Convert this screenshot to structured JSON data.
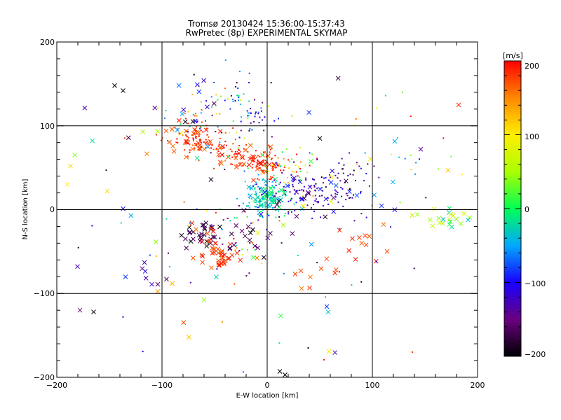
{
  "chart_data": {
    "type": "scatter",
    "title": "Tromsø 20130424 15:36:00-15:37:43",
    "subtitle": "RwPretec (8p) EXPERIMENTAL SKYMAP",
    "xlabel": "E-W location [km]",
    "ylabel": "N-S location [km]",
    "xlim": [
      -200,
      200
    ],
    "ylim": [
      -200,
      200
    ],
    "xticks": [
      "−200",
      "−100",
      "0",
      "100",
      "200"
    ],
    "yticks": [
      "200",
      "100",
      "0",
      "−100",
      "−200"
    ],
    "grid": true,
    "colorbar": {
      "label": "[m/s]",
      "range": [
        -200,
        200
      ],
      "ticks": [
        "200",
        "100",
        "0",
        "−100",
        "−200"
      ]
    },
    "clusters": [
      {
        "marker": "dot",
        "x": -70,
        "y": 85,
        "sx": 12,
        "sy": 12,
        "n": 90,
        "v": 185,
        "dv": 20
      },
      {
        "marker": "cross",
        "x": -70,
        "y": 85,
        "sx": 12,
        "sy": 10,
        "n": 25,
        "v": 180,
        "dv": 20
      },
      {
        "marker": "dot",
        "x": -30,
        "y": 65,
        "sx": 12,
        "sy": 10,
        "n": 40,
        "v": 185,
        "dv": 20
      },
      {
        "marker": "cross",
        "x": -30,
        "y": 62,
        "sx": 10,
        "sy": 8,
        "n": 15,
        "v": 180,
        "dv": 20
      },
      {
        "marker": "dot",
        "x": -7,
        "y": 55,
        "sx": 8,
        "sy": 10,
        "n": 50,
        "v": 185,
        "dv": 15
      },
      {
        "marker": "cross",
        "x": -7,
        "y": 55,
        "sx": 8,
        "sy": 10,
        "n": 18,
        "v": 185,
        "dv": 15
      },
      {
        "marker": "dot",
        "x": 0,
        "y": 15,
        "sx": 10,
        "sy": 10,
        "n": 140,
        "v": -30,
        "dv": 35
      },
      {
        "marker": "cross",
        "x": 0,
        "y": 15,
        "sx": 10,
        "sy": 8,
        "n": 30,
        "v": -25,
        "dv": 35
      },
      {
        "marker": "dot",
        "x": 10,
        "y": 50,
        "sx": 15,
        "sy": 10,
        "n": 50,
        "v": 110,
        "dv": 110
      },
      {
        "marker": "dot",
        "x": 40,
        "y": 20,
        "sx": 25,
        "sy": 15,
        "n": 100,
        "v": -120,
        "dv": 35
      },
      {
        "marker": "cross",
        "x": 40,
        "y": 20,
        "sx": 25,
        "sy": 12,
        "n": 25,
        "v": -130,
        "dv": 60
      },
      {
        "marker": "dot",
        "x": 70,
        "y": 35,
        "sx": 18,
        "sy": 15,
        "n": 40,
        "v": -150,
        "dv": 50
      },
      {
        "marker": "dot",
        "x": -35,
        "y": 120,
        "sx": 25,
        "sy": 25,
        "n": 60,
        "v": -20,
        "dv": 180
      },
      {
        "marker": "cross",
        "x": -75,
        "y": 125,
        "sx": 15,
        "sy": 15,
        "n": 12,
        "v": -120,
        "dv": 90
      },
      {
        "marker": "dot",
        "x": -10,
        "y": 115,
        "sx": 10,
        "sy": 10,
        "n": 30,
        "v": -100,
        "dv": 60
      },
      {
        "marker": "cross",
        "x": -62,
        "y": -30,
        "sx": 12,
        "sy": 10,
        "n": 30,
        "v": -175,
        "dv": 25
      },
      {
        "marker": "cross",
        "x": -40,
        "y": -55,
        "sx": 6,
        "sy": 6,
        "n": 20,
        "v": 185,
        "dv": 10
      },
      {
        "marker": "cross",
        "x": -55,
        "y": -45,
        "sx": 15,
        "sy": 12,
        "n": 20,
        "v": 180,
        "dv": 20
      },
      {
        "marker": "cross",
        "x": -25,
        "y": -30,
        "sx": 15,
        "sy": 15,
        "n": 15,
        "v": -180,
        "dv": 30
      },
      {
        "marker": "dot",
        "x": -40,
        "y": -30,
        "sx": 30,
        "sy": 25,
        "n": 40,
        "v": 0,
        "dv": 200
      },
      {
        "marker": "cross",
        "x": 165,
        "y": -12,
        "sx": 15,
        "sy": 6,
        "n": 22,
        "v": 20,
        "dv": 60
      },
      {
        "marker": "cross",
        "x": 85,
        "y": -45,
        "sx": 15,
        "sy": 15,
        "n": 12,
        "v": 180,
        "dv": 20
      },
      {
        "marker": "cross",
        "x": 40,
        "y": -80,
        "sx": 10,
        "sy": 10,
        "n": 8,
        "v": 175,
        "dv": 25
      },
      {
        "marker": "cross",
        "x": -115,
        "y": -80,
        "sx": 8,
        "sy": 8,
        "n": 8,
        "v": -130,
        "dv": 50
      },
      {
        "marker": "dot",
        "x": 150,
        "y": 60,
        "sx": 30,
        "sy": 30,
        "n": 15,
        "v": 0,
        "dv": 200
      },
      {
        "marker": "cross",
        "x": -140,
        "y": 20,
        "sx": 35,
        "sy": 70,
        "n": 15,
        "v": 0,
        "dv": 200
      },
      {
        "marker": "dot",
        "x": 0,
        "y": 0,
        "sx": 90,
        "sy": 80,
        "n": 80,
        "v": 0,
        "dv": 200
      },
      {
        "marker": "cross",
        "x": 0,
        "y": 0,
        "sx": 90,
        "sy": 80,
        "n": 40,
        "v": 0,
        "dv": 200
      }
    ],
    "extra_points": [
      {
        "marker": "cross",
        "x": -178,
        "y": -120,
        "v": -150
      },
      {
        "marker": "cross",
        "x": -165,
        "y": -122,
        "v": -190
      },
      {
        "marker": "cross",
        "x": 12,
        "y": -193,
        "v": -200
      },
      {
        "marker": "cross",
        "x": 17,
        "y": -197,
        "v": -200
      },
      {
        "marker": "cross",
        "x": 182,
        "y": 125,
        "v": 190
      },
      {
        "marker": "cross",
        "x": -145,
        "y": 148,
        "v": -200
      },
      {
        "marker": "cross",
        "x": -137,
        "y": 142,
        "v": -200
      },
      {
        "marker": "cross",
        "x": -190,
        "y": 30,
        "v": 100
      },
      {
        "marker": "cross",
        "x": -187,
        "y": 52,
        "v": 110
      },
      {
        "marker": "cross",
        "x": -183,
        "y": 65,
        "v": 40
      },
      {
        "marker": "cross",
        "x": -152,
        "y": 22,
        "v": 110
      },
      {
        "marker": "cross",
        "x": 58,
        "y": -122,
        "v": -30
      },
      {
        "marker": "cross",
        "x": 50,
        "y": 85,
        "v": -200
      },
      {
        "marker": "cross",
        "x": 172,
        "y": 47,
        "v": 120
      },
      {
        "marker": "cross",
        "x": 146,
        "y": 72,
        "v": -140
      },
      {
        "marker": "dot",
        "x": -137,
        "y": -128,
        "v": -120
      },
      {
        "marker": "dot",
        "x": 39,
        "y": -165,
        "v": -200
      },
      {
        "marker": "dot",
        "x": 138,
        "y": -170,
        "v": 180
      }
    ]
  }
}
